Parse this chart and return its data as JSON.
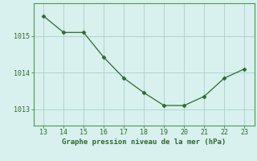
{
  "x": [
    13,
    14,
    15,
    16,
    17,
    18,
    19,
    20,
    21,
    22,
    23
  ],
  "y": [
    1015.55,
    1015.1,
    1015.1,
    1014.42,
    1013.85,
    1013.45,
    1013.1,
    1013.1,
    1013.35,
    1013.85,
    1014.1
  ],
  "line_color": "#2d6a2d",
  "marker_color": "#2d6a2d",
  "bg_color": "#d8f0ee",
  "grid_color": "#aacfcc",
  "xlabel": "Graphe pression niveau de la mer (hPa)",
  "xlabel_color": "#2d6a2d",
  "tick_color": "#2d6a2d",
  "spine_color": "#4a9a4a",
  "yticks": [
    1013,
    1014,
    1015
  ],
  "xticks": [
    13,
    14,
    15,
    16,
    17,
    18,
    19,
    20,
    21,
    22,
    23
  ],
  "ylim": [
    1012.55,
    1015.9
  ],
  "xlim": [
    12.5,
    23.5
  ],
  "tick_fontsize": 6,
  "xlabel_fontsize": 6.5
}
